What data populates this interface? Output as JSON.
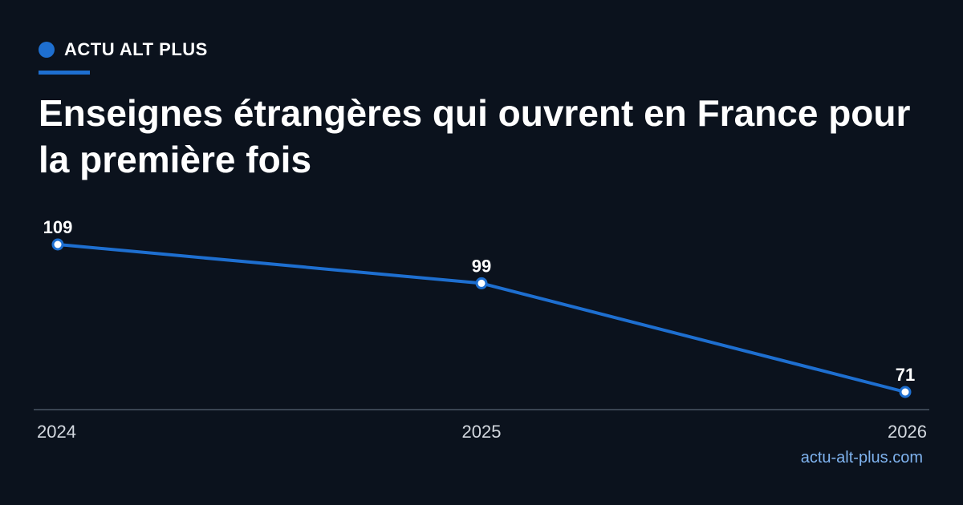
{
  "brand": {
    "name": "ACTU ALT PLUS",
    "accent_color": "#1e6fd0"
  },
  "footer": {
    "url": "actu-alt-plus.com"
  },
  "chart_data": {
    "type": "line",
    "title": "Enseignes étrangères qui ouvrent en France pour la première fois",
    "x": [
      "2024",
      "2025",
      "2026"
    ],
    "series": [
      {
        "values": [
          109,
          99,
          71
        ],
        "color": "#1e6fd0"
      }
    ],
    "data_labels": [
      "109",
      "99",
      "71"
    ],
    "grid": false,
    "legend": "none"
  }
}
